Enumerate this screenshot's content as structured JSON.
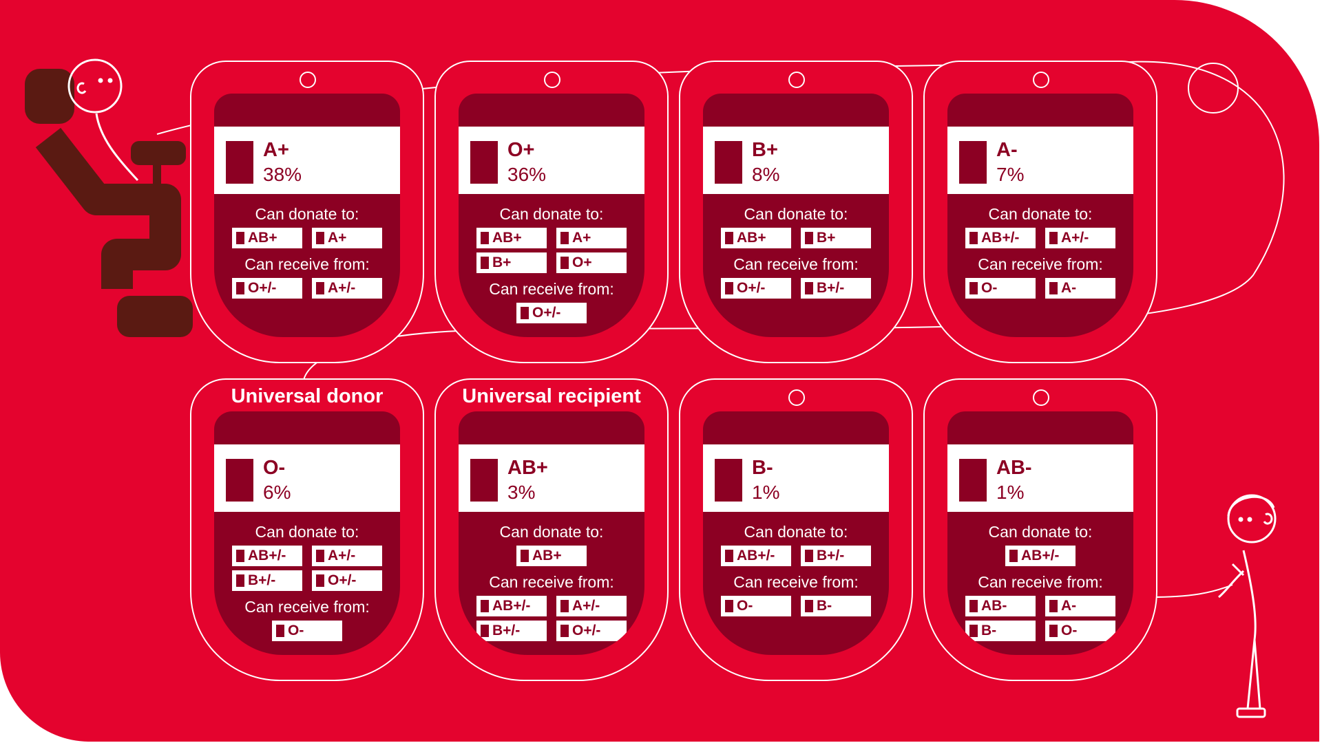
{
  "colors": {
    "background": "#e4032e",
    "dark": "#8c0023",
    "line": "#ffffff",
    "figure": "#5a1a12"
  },
  "labels": {
    "donate": "Can donate to:",
    "receive": "Can receive from:"
  },
  "bags": [
    {
      "type": "A+",
      "percent": "38%",
      "heading": "",
      "donate_to": [
        "AB+",
        "A+"
      ],
      "receive_from": [
        "O+/-",
        "A+/-"
      ]
    },
    {
      "type": "O+",
      "percent": "36%",
      "heading": "",
      "donate_to": [
        "AB+",
        "A+",
        "B+",
        "O+"
      ],
      "receive_from": [
        "O+/-"
      ]
    },
    {
      "type": "B+",
      "percent": "8%",
      "heading": "",
      "donate_to": [
        "AB+",
        "B+"
      ],
      "receive_from": [
        "O+/-",
        "B+/-"
      ]
    },
    {
      "type": "A-",
      "percent": "7%",
      "heading": "",
      "donate_to": [
        "AB+/-",
        "A+/-"
      ],
      "receive_from": [
        "O-",
        "A-"
      ]
    },
    {
      "type": "O-",
      "percent": "6%",
      "heading": "Universal donor",
      "donate_to": [
        "AB+/-",
        "A+/-",
        "B+/-",
        "O+/-"
      ],
      "receive_from": [
        "O-"
      ]
    },
    {
      "type": "AB+",
      "percent": "3%",
      "heading": "Universal recipient",
      "donate_to": [
        "AB+"
      ],
      "receive_from": [
        "AB+/-",
        "A+/-",
        "B+/-",
        "O+/-"
      ]
    },
    {
      "type": "B-",
      "percent": "1%",
      "heading": "",
      "donate_to": [
        "AB+/-",
        "B+/-"
      ],
      "receive_from": [
        "O-",
        "B-"
      ]
    },
    {
      "type": "AB-",
      "percent": "1%",
      "heading": "",
      "donate_to": [
        "AB+/-"
      ],
      "receive_from": [
        "AB-",
        "A-",
        "B-",
        "O-"
      ]
    }
  ]
}
